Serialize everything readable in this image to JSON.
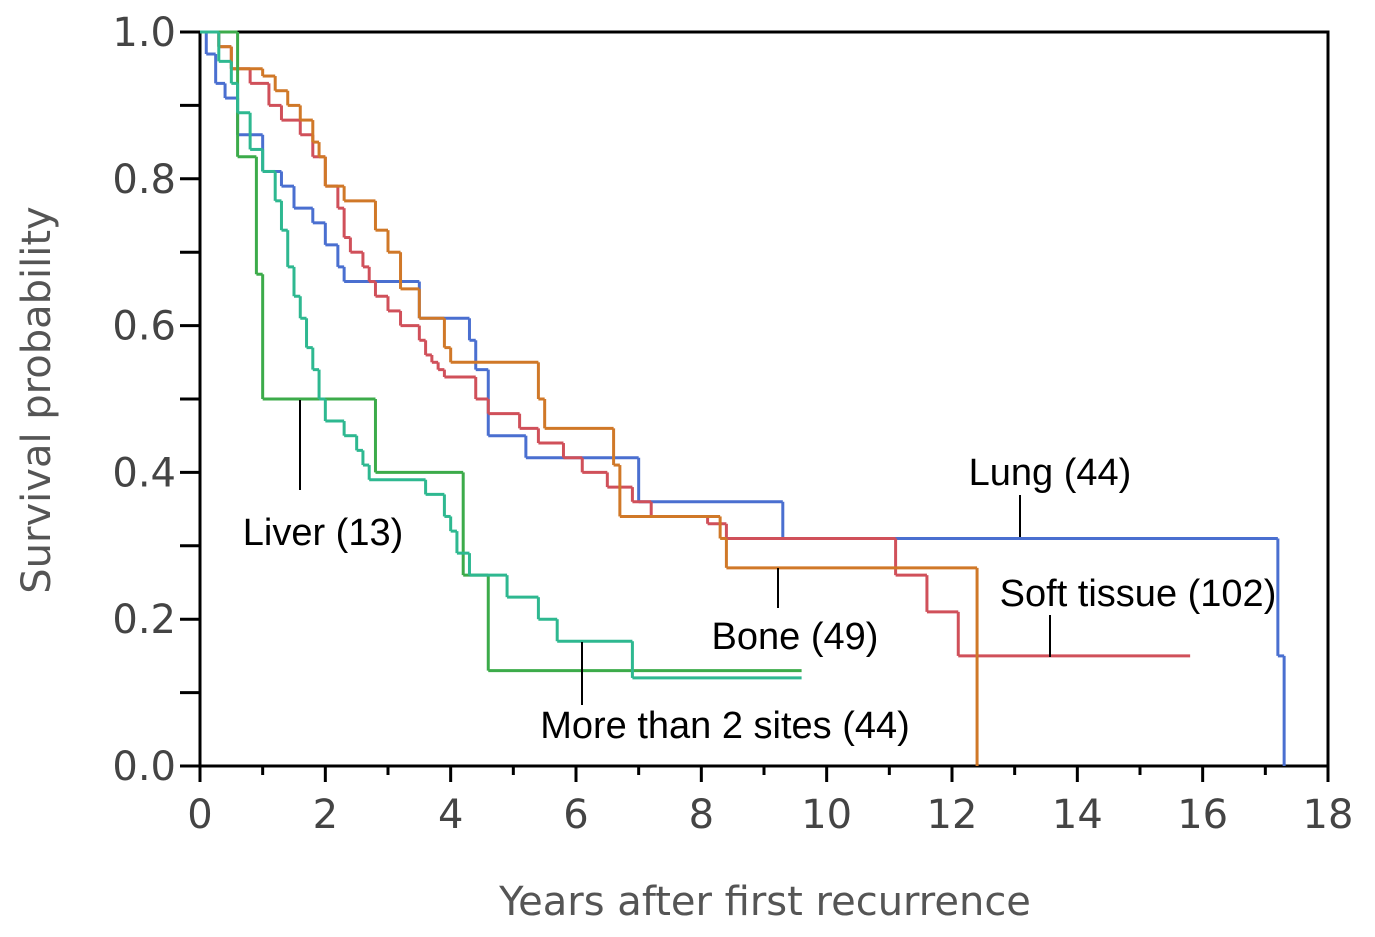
{
  "chart_data": {
    "type": "step",
    "xlabel": "Years after first recurrence",
    "ylabel": "Survival probability",
    "xlim": [
      0,
      18
    ],
    "ylim": [
      0,
      1
    ],
    "xticks": [
      0,
      2,
      4,
      6,
      8,
      10,
      12,
      14,
      16,
      18
    ],
    "x_minor_ticks": [
      1,
      3,
      5,
      7,
      9,
      11,
      13,
      15,
      17
    ],
    "yticks": [
      {
        "value": 0,
        "label": "0.0"
      },
      0.2,
      0.4,
      0.6,
      0.8,
      {
        "value": 1,
        "label": "1.0"
      }
    ],
    "y_minor_ticks": [
      0.1,
      0.3,
      0.5,
      0.7,
      0.9
    ],
    "series": [
      {
        "name": "Lung (44)",
        "color": "#4a6fd0",
        "x": [
          0,
          0.1,
          0.25,
          0.4,
          0.6,
          1.0,
          1.3,
          1.5,
          1.8,
          2.0,
          2.2,
          2.3,
          3.5,
          4.3,
          4.4,
          4.6,
          5.2,
          7.0,
          9.3,
          17.2,
          17.3
        ],
        "values": [
          1.0,
          0.97,
          0.93,
          0.91,
          0.86,
          0.81,
          0.79,
          0.76,
          0.74,
          0.71,
          0.68,
          0.66,
          0.61,
          0.58,
          0.54,
          0.45,
          0.42,
          0.36,
          0.31,
          0.15,
          0.0
        ]
      },
      {
        "name": "Soft tissue (102)",
        "color": "#d0505a",
        "x": [
          0,
          0.3,
          0.5,
          0.8,
          1.1,
          1.3,
          1.6,
          1.8,
          2.0,
          2.2,
          2.3,
          2.4,
          2.6,
          2.7,
          2.8,
          3.0,
          3.2,
          3.5,
          3.6,
          3.7,
          3.8,
          3.9,
          4.4,
          4.6,
          5.1,
          5.4,
          5.8,
          6.1,
          6.5,
          6.9,
          7.2,
          8.1,
          8.4,
          11.1,
          11.6,
          12.1,
          15.8
        ],
        "values": [
          1.0,
          0.98,
          0.95,
          0.93,
          0.9,
          0.88,
          0.86,
          0.83,
          0.79,
          0.76,
          0.72,
          0.7,
          0.68,
          0.66,
          0.64,
          0.62,
          0.6,
          0.58,
          0.56,
          0.55,
          0.54,
          0.53,
          0.5,
          0.48,
          0.46,
          0.44,
          0.42,
          0.4,
          0.38,
          0.36,
          0.34,
          0.33,
          0.31,
          0.26,
          0.21,
          0.15,
          0.15
        ]
      },
      {
        "name": "Bone (49)",
        "color": "#d07828",
        "x": [
          0,
          0.3,
          0.5,
          1.0,
          1.2,
          1.4,
          1.6,
          1.8,
          1.9,
          2.0,
          2.3,
          2.8,
          3.0,
          3.2,
          3.5,
          3.9,
          4.0,
          5.4,
          5.5,
          6.6,
          6.7,
          8.3,
          8.4,
          12.4
        ],
        "values": [
          1.0,
          0.98,
          0.95,
          0.94,
          0.92,
          0.9,
          0.88,
          0.85,
          0.83,
          0.79,
          0.77,
          0.73,
          0.7,
          0.65,
          0.61,
          0.57,
          0.55,
          0.5,
          0.46,
          0.41,
          0.34,
          0.31,
          0.27,
          0.0
        ]
      },
      {
        "name": "Liver (13)",
        "color": "#3cab4a",
        "x": [
          0,
          0.6,
          0.9,
          1.0,
          2.8,
          4.2,
          4.6,
          9.6
        ],
        "values": [
          1.0,
          0.83,
          0.67,
          0.5,
          0.4,
          0.26,
          0.13,
          0.13
        ]
      },
      {
        "name": "More than 2 sites (44)",
        "color": "#2eb890",
        "x": [
          0,
          0.3,
          0.5,
          0.6,
          0.8,
          1.0,
          1.2,
          1.3,
          1.4,
          1.5,
          1.6,
          1.7,
          1.8,
          1.9,
          2.0,
          2.3,
          2.5,
          2.6,
          2.7,
          3.6,
          3.9,
          4.0,
          4.1,
          4.3,
          4.9,
          5.4,
          5.7,
          6.9,
          9.6
        ],
        "values": [
          1.0,
          0.96,
          0.93,
          0.89,
          0.84,
          0.81,
          0.77,
          0.73,
          0.68,
          0.64,
          0.61,
          0.57,
          0.54,
          0.5,
          0.47,
          0.45,
          0.43,
          0.41,
          0.39,
          0.37,
          0.34,
          0.32,
          0.29,
          0.26,
          0.23,
          0.2,
          0.17,
          0.12,
          0.12
        ]
      }
    ]
  }
}
